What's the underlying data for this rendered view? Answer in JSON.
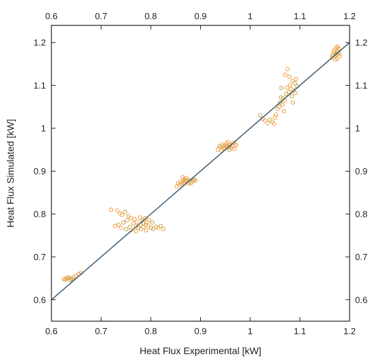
{
  "chart_data": {
    "type": "scatter",
    "title": "",
    "xlabel": "Heat Flux Experimental [kW]",
    "ylabel": "Heat Flux Simulated [kW]",
    "xlim": [
      0.6,
      1.2
    ],
    "ylim": [
      0.55,
      1.24
    ],
    "xticks": [
      "0.6",
      "0.7",
      "0.8",
      "0.9",
      "1",
      "1.1",
      "1.2"
    ],
    "xtick_values": [
      0.6,
      0.7,
      0.8,
      0.9,
      1.0,
      1.1,
      1.2
    ],
    "yticks": [
      "0.6",
      "0.7",
      "0.8",
      "0.9",
      "1",
      "1.1",
      "1.2"
    ],
    "ytick_values": [
      0.6,
      0.7,
      0.8,
      0.9,
      1.0,
      1.1,
      1.2
    ],
    "grid": false,
    "mirror_axes": true,
    "reference_line": {
      "type": "y=x",
      "from": 0.6,
      "to": 1.2,
      "color": "#3d5a73"
    },
    "marker_colors": [
      "#f39c3c",
      "#f5a65b",
      "#b8a84a",
      "#e8a040"
    ],
    "series": [
      {
        "points": [
          [
            0.625,
            0.648
          ],
          [
            0.63,
            0.65
          ],
          [
            0.635,
            0.652
          ],
          [
            0.64,
            0.649
          ],
          [
            0.645,
            0.653
          ],
          [
            0.65,
            0.656
          ],
          [
            0.638,
            0.646
          ],
          [
            0.632,
            0.651
          ],
          [
            0.655,
            0.66
          ],
          [
            0.66,
            0.663
          ],
          [
            0.642,
            0.648
          ],
          [
            0.628,
            0.647
          ],
          [
            0.738,
            0.802
          ],
          [
            0.742,
            0.798
          ],
          [
            0.748,
            0.805
          ],
          [
            0.755,
            0.795
          ],
          [
            0.76,
            0.79
          ],
          [
            0.752,
            0.785
          ],
          [
            0.745,
            0.78
          ],
          [
            0.735,
            0.775
          ],
          [
            0.728,
            0.772
          ],
          [
            0.74,
            0.768
          ],
          [
            0.758,
            0.77
          ],
          [
            0.765,
            0.778
          ],
          [
            0.77,
            0.772
          ],
          [
            0.775,
            0.768
          ],
          [
            0.78,
            0.765
          ],
          [
            0.785,
            0.77
          ],
          [
            0.79,
            0.775
          ],
          [
            0.795,
            0.772
          ],
          [
            0.8,
            0.768
          ],
          [
            0.805,
            0.765
          ],
          [
            0.81,
            0.77
          ],
          [
            0.815,
            0.768
          ],
          [
            0.82,
            0.772
          ],
          [
            0.825,
            0.765
          ],
          [
            0.77,
            0.76
          ],
          [
            0.76,
            0.762
          ],
          [
            0.75,
            0.765
          ],
          [
            0.79,
            0.762
          ],
          [
            0.72,
            0.81
          ],
          [
            0.732,
            0.808
          ],
          [
            0.783,
            0.785
          ],
          [
            0.788,
            0.79
          ],
          [
            0.778,
            0.792
          ],
          [
            0.792,
            0.781
          ],
          [
            0.785,
            0.778
          ],
          [
            0.78,
            0.775
          ],
          [
            0.796,
            0.786
          ],
          [
            0.772,
            0.782
          ],
          [
            0.803,
            0.78
          ],
          [
            0.767,
            0.788
          ],
          [
            0.855,
            0.872
          ],
          [
            0.86,
            0.875
          ],
          [
            0.865,
            0.878
          ],
          [
            0.87,
            0.88
          ],
          [
            0.875,
            0.876
          ],
          [
            0.88,
            0.874
          ],
          [
            0.885,
            0.877
          ],
          [
            0.862,
            0.87
          ],
          [
            0.868,
            0.882
          ],
          [
            0.872,
            0.884
          ],
          [
            0.878,
            0.879
          ],
          [
            0.866,
            0.873
          ],
          [
            0.858,
            0.868
          ],
          [
            0.881,
            0.872
          ],
          [
            0.887,
            0.88
          ],
          [
            0.89,
            0.878
          ],
          [
            0.852,
            0.864
          ],
          [
            0.864,
            0.886
          ],
          [
            0.876,
            0.871
          ],
          [
            0.869,
            0.876
          ],
          [
            0.935,
            0.95
          ],
          [
            0.94,
            0.955
          ],
          [
            0.945,
            0.958
          ],
          [
            0.95,
            0.96
          ],
          [
            0.955,
            0.956
          ],
          [
            0.96,
            0.962
          ],
          [
            0.965,
            0.958
          ],
          [
            0.97,
            0.963
          ],
          [
            0.948,
            0.952
          ],
          [
            0.952,
            0.965
          ],
          [
            0.958,
            0.95
          ],
          [
            0.962,
            0.954
          ],
          [
            0.942,
            0.948
          ],
          [
            0.968,
            0.952
          ],
          [
            0.938,
            0.958
          ],
          [
            0.956,
            0.968
          ],
          [
            0.944,
            0.962
          ],
          [
            0.966,
            0.966
          ],
          [
            0.953,
            0.957
          ],
          [
            0.947,
            0.954
          ],
          [
            0.959,
            0.959
          ],
          [
            0.972,
            0.96
          ],
          [
            1.02,
            1.03
          ],
          [
            1.025,
            1.022
          ],
          [
            1.03,
            1.018
          ],
          [
            1.035,
            1.012
          ],
          [
            1.04,
            1.02
          ],
          [
            1.045,
            1.015
          ],
          [
            1.05,
            1.025
          ],
          [
            1.055,
            1.045
          ],
          [
            1.06,
            1.06
          ],
          [
            1.065,
            1.055
          ],
          [
            1.07,
            1.065
          ],
          [
            1.058,
            1.05
          ],
          [
            1.062,
            1.072
          ],
          [
            1.052,
            1.032
          ],
          [
            1.068,
            1.04
          ],
          [
            1.048,
            1.01
          ],
          [
            1.072,
            1.08
          ],
          [
            1.075,
            1.095
          ],
          [
            1.08,
            1.1
          ],
          [
            1.085,
            1.11
          ],
          [
            1.09,
            1.105
          ],
          [
            1.095,
            1.098
          ],
          [
            1.078,
            1.085
          ],
          [
            1.082,
            1.092
          ],
          [
            1.088,
            1.088
          ],
          [
            1.092,
            1.115
          ],
          [
            1.07,
            1.125
          ],
          [
            1.075,
            1.138
          ],
          [
            1.084,
            1.075
          ],
          [
            1.066,
            1.07
          ],
          [
            1.086,
            1.06
          ],
          [
            1.091,
            1.082
          ],
          [
            1.063,
            1.094
          ],
          [
            1.079,
            1.12
          ],
          [
            1.165,
            1.165
          ],
          [
            1.17,
            1.17
          ],
          [
            1.175,
            1.18
          ],
          [
            1.172,
            1.175
          ],
          [
            1.178,
            1.185
          ],
          [
            1.168,
            1.178
          ],
          [
            1.174,
            1.172
          ],
          [
            1.18,
            1.168
          ],
          [
            1.176,
            1.19
          ],
          [
            1.171,
            1.16
          ],
          [
            1.177,
            1.176
          ],
          [
            1.169,
            1.182
          ],
          [
            1.173,
            1.188
          ],
          [
            1.179,
            1.174
          ],
          [
            1.166,
            1.171
          ],
          [
            1.175,
            1.162
          ]
        ]
      }
    ]
  }
}
